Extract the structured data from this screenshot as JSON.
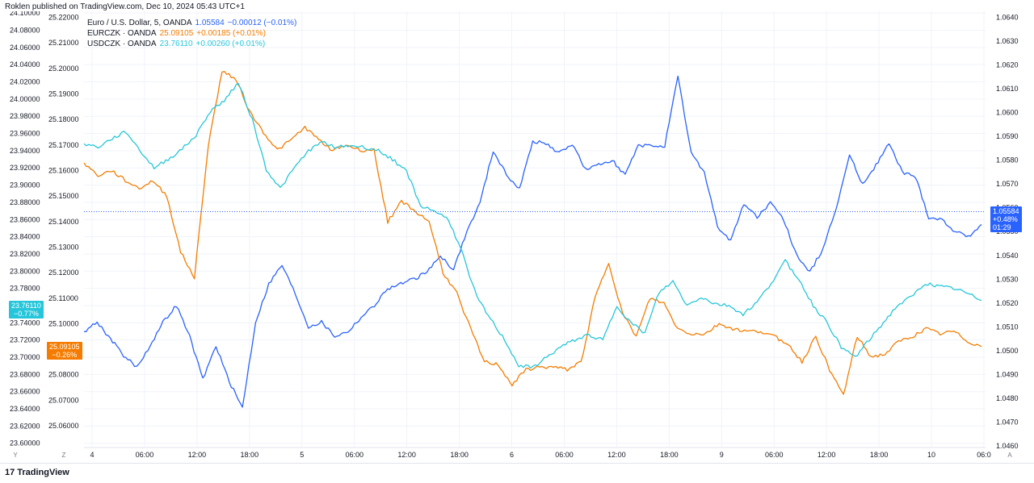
{
  "header": {
    "published": "Roklen published on TradingView.com, Dec 10, 2024 05:43 UTC+1"
  },
  "legend": [
    {
      "name": "Euro / U.S. Dollar, 5, OANDA",
      "value": "1.05584",
      "change": "−0.00012 (−0.01%)",
      "color": "#2962ff"
    },
    {
      "name": "EURCZK · OANDA",
      "value": "25.09105",
      "change": "+0.00185 (+0.01%)",
      "color": "#f57c00"
    },
    {
      "name": "USDCZK · OANDA",
      "value": "23.76110",
      "change": "+0.00260 (+0.01%)",
      "color": "#26c6da"
    }
  ],
  "badges": {
    "usdczk": {
      "value": "23.76110",
      "pct": "−0.77%",
      "color": "#26c6da"
    },
    "eurczk": {
      "value": "25.09105",
      "pct": "−0.26%",
      "color": "#f57c00"
    },
    "eurusd": {
      "value": "1.05584",
      "pct": "+0.48%",
      "time": "01:29",
      "color": "#2962ff"
    }
  },
  "corners": {
    "bottom_left_1": "Y",
    "bottom_left_2": "Z",
    "bottom_right": "A"
  },
  "footer": {
    "logo_mark": "17",
    "logo_text": "TradingView"
  },
  "chart_data": {
    "type": "line",
    "x_ticks": [
      "4",
      "06:00",
      "12:00",
      "18:00",
      "5",
      "06:00",
      "12:00",
      "18:00",
      "6",
      "06:00",
      "12:00",
      "18:00",
      "9",
      "06:00",
      "12:00",
      "18:00",
      "10",
      "06:0"
    ],
    "axes": {
      "usdczk": {
        "ticks": [
          "24.10000",
          "24.08000",
          "24.06000",
          "24.04000",
          "24.02000",
          "24.00000",
          "23.98000",
          "23.96000",
          "23.94000",
          "23.92000",
          "23.90000",
          "23.88000",
          "23.86000",
          "23.84000",
          "23.82000",
          "23.80000",
          "23.78000",
          "23.76000",
          "23.74000",
          "23.72000",
          "23.70000",
          "23.68000",
          "23.66000",
          "23.64000",
          "23.62000",
          "23.60000"
        ],
        "range": [
          23.596,
          24.102
        ]
      },
      "eurczk": {
        "ticks": [
          "25.22000",
          "25.21000",
          "25.20000",
          "25.19000",
          "25.18000",
          "25.17000",
          "25.16000",
          "25.15000",
          "25.14000",
          "25.13000",
          "25.12000",
          "25.11000",
          "25.10000",
          "25.09000",
          "25.08000",
          "25.07000",
          "25.06000"
        ],
        "range": [
          25.0518,
          25.2224
        ]
      },
      "eurusd": {
        "ticks": [
          "1.0640",
          "1.0630",
          "1.0620",
          "1.0610",
          "1.0600",
          "1.0590",
          "1.0580",
          "1.0570",
          "1.0560",
          "1.0550",
          "1.0540",
          "1.0530",
          "1.0520",
          "1.0510",
          "1.0500",
          "1.0490",
          "1.0480",
          "1.0470",
          "1.0460"
        ],
        "range": [
          1.04596,
          1.06426
        ]
      }
    },
    "series": [
      {
        "name": "Euro / U.S. Dollar, 5, OANDA",
        "axis": "eurusd",
        "color": "#2962ff",
        "values": [
          1.0508,
          1.0512,
          1.0505,
          1.0498,
          1.0493,
          1.0502,
          1.0512,
          1.0519,
          1.0506,
          1.0488,
          1.0502,
          1.0487,
          1.0476,
          1.0512,
          1.0528,
          1.0536,
          1.0524,
          1.051,
          1.0512,
          1.0506,
          1.0508,
          1.0514,
          1.0519,
          1.0526,
          1.0528,
          1.053,
          1.0533,
          1.054,
          1.0534,
          1.055,
          1.0562,
          1.0584,
          1.0574,
          1.0568,
          1.0588,
          1.0587,
          1.0583,
          1.0587,
          1.0576,
          1.0578,
          1.058,
          1.0574,
          1.0586,
          1.0586,
          1.0586,
          1.0615,
          1.0583,
          1.0575,
          1.0552,
          1.0546,
          1.0562,
          1.0556,
          1.0562,
          1.0555,
          1.054,
          1.0533,
          1.0543,
          1.056,
          1.0582,
          1.057,
          1.0578,
          1.0587,
          1.0575,
          1.0573,
          1.0556,
          1.0555,
          1.055,
          1.0548,
          1.0553
        ]
      },
      {
        "name": "EURCZK · OANDA",
        "axis": "eurczk",
        "color": "#f57c00",
        "values": [
          25.163,
          25.158,
          25.16,
          25.156,
          25.153,
          25.156,
          25.15,
          25.128,
          25.118,
          25.17,
          25.199,
          25.196,
          25.183,
          25.175,
          25.168,
          25.172,
          25.177,
          25.172,
          25.168,
          25.17,
          25.168,
          25.168,
          25.14,
          25.148,
          25.144,
          25.14,
          25.12,
          25.112,
          25.098,
          25.085,
          25.084,
          25.076,
          25.082,
          25.083,
          25.083,
          25.082,
          25.085,
          25.11,
          25.124,
          25.104,
          25.095,
          25.11,
          25.108,
          25.098,
          25.096,
          25.096,
          25.1,
          25.098,
          25.097,
          25.097,
          25.095,
          25.092,
          25.085,
          25.095,
          25.082,
          25.072,
          25.095,
          25.087,
          25.088,
          25.093,
          25.095,
          25.098,
          25.096,
          25.097,
          25.093,
          25.091
        ]
      },
      {
        "name": "USDCZK · OANDA",
        "axis": "usdczk",
        "color": "#26c6da",
        "values": [
          23.948,
          23.944,
          23.954,
          23.962,
          23.94,
          23.92,
          23.93,
          23.942,
          23.958,
          23.986,
          23.998,
          24.02,
          23.976,
          23.918,
          23.896,
          23.92,
          23.94,
          23.95,
          23.944,
          23.946,
          23.944,
          23.94,
          23.93,
          23.916,
          23.876,
          23.87,
          23.86,
          23.82,
          23.77,
          23.744,
          23.72,
          23.69,
          23.688,
          23.7,
          23.712,
          23.72,
          23.726,
          23.72,
          23.76,
          23.74,
          23.728,
          23.775,
          23.788,
          23.76,
          23.77,
          23.762,
          23.76,
          23.75,
          23.764,
          23.786,
          23.812,
          23.79,
          23.76,
          23.74,
          23.712,
          23.7,
          23.72,
          23.74,
          23.76,
          23.77,
          23.786,
          23.782,
          23.78,
          23.774,
          23.766
        ]
      }
    ]
  }
}
